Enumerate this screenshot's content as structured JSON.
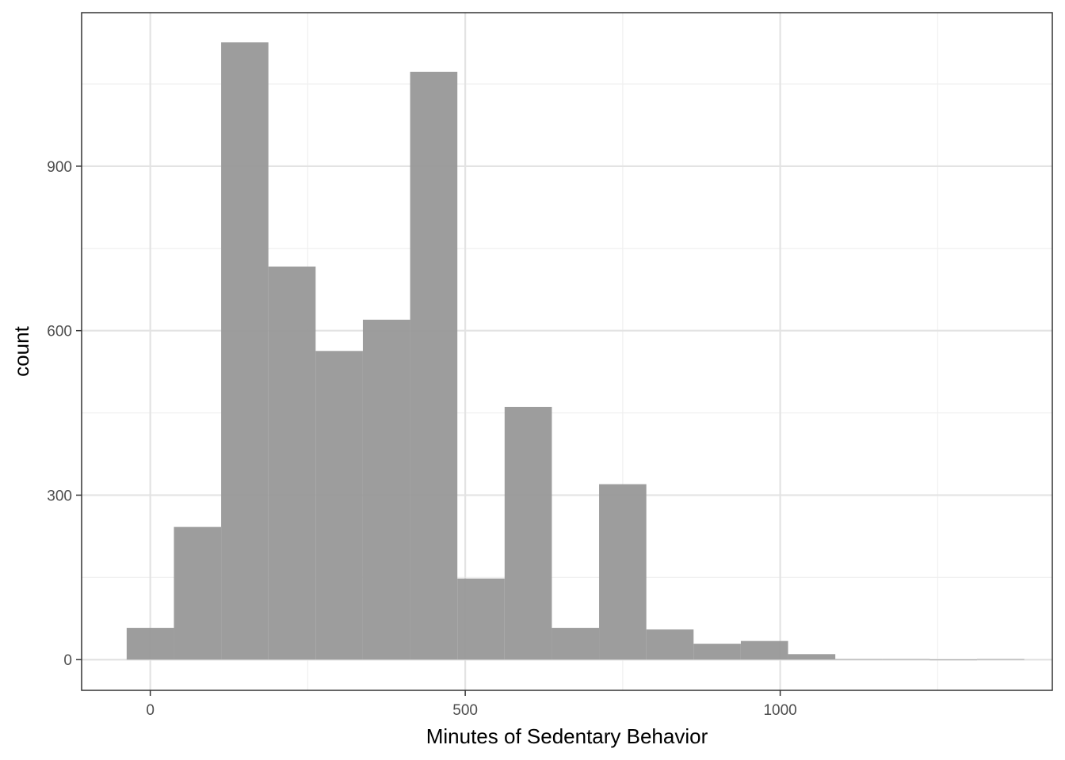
{
  "chart_data": {
    "type": "bar",
    "subtype": "histogram",
    "title": "",
    "xlabel": "Minutes of Sedentary Behavior",
    "ylabel": "count",
    "xlim": [
      -109,
      1432
    ],
    "ylim": [
      -56,
      1180
    ],
    "x_ticks": [
      0,
      500,
      1000
    ],
    "y_ticks": [
      0,
      300,
      600,
      900
    ],
    "grid": true,
    "legend": "none",
    "bin_width": 75,
    "bins": [
      {
        "start": -37.5,
        "end": 37.5,
        "count": 58
      },
      {
        "start": 37.5,
        "end": 112.5,
        "count": 242
      },
      {
        "start": 112.5,
        "end": 187.5,
        "count": 1126
      },
      {
        "start": 187.5,
        "end": 262.5,
        "count": 717
      },
      {
        "start": 262.5,
        "end": 337.5,
        "count": 563
      },
      {
        "start": 337.5,
        "end": 412.5,
        "count": 620
      },
      {
        "start": 412.5,
        "end": 487.5,
        "count": 1072
      },
      {
        "start": 487.5,
        "end": 562.5,
        "count": 148
      },
      {
        "start": 562.5,
        "end": 637.5,
        "count": 461
      },
      {
        "start": 637.5,
        "end": 712.5,
        "count": 58
      },
      {
        "start": 712.5,
        "end": 787.5,
        "count": 320
      },
      {
        "start": 787.5,
        "end": 862.5,
        "count": 55
      },
      {
        "start": 862.5,
        "end": 937.5,
        "count": 29
      },
      {
        "start": 937.5,
        "end": 1012.5,
        "count": 34
      },
      {
        "start": 1012.5,
        "end": 1087.5,
        "count": 10
      },
      {
        "start": 1087.5,
        "end": 1162.5,
        "count": 1
      },
      {
        "start": 1162.5,
        "end": 1237.5,
        "count": 1
      },
      {
        "start": 1237.5,
        "end": 1312.5,
        "count": 0
      },
      {
        "start": 1312.5,
        "end": 1387.5,
        "count": 1
      }
    ],
    "colors": {
      "bar_fill": "#999999",
      "panel_border": "#333333",
      "grid_major": "#e3e3e3",
      "grid_minor": "#efefef",
      "tick_text": "#4d4d4d",
      "axis_title": "#000000"
    }
  }
}
